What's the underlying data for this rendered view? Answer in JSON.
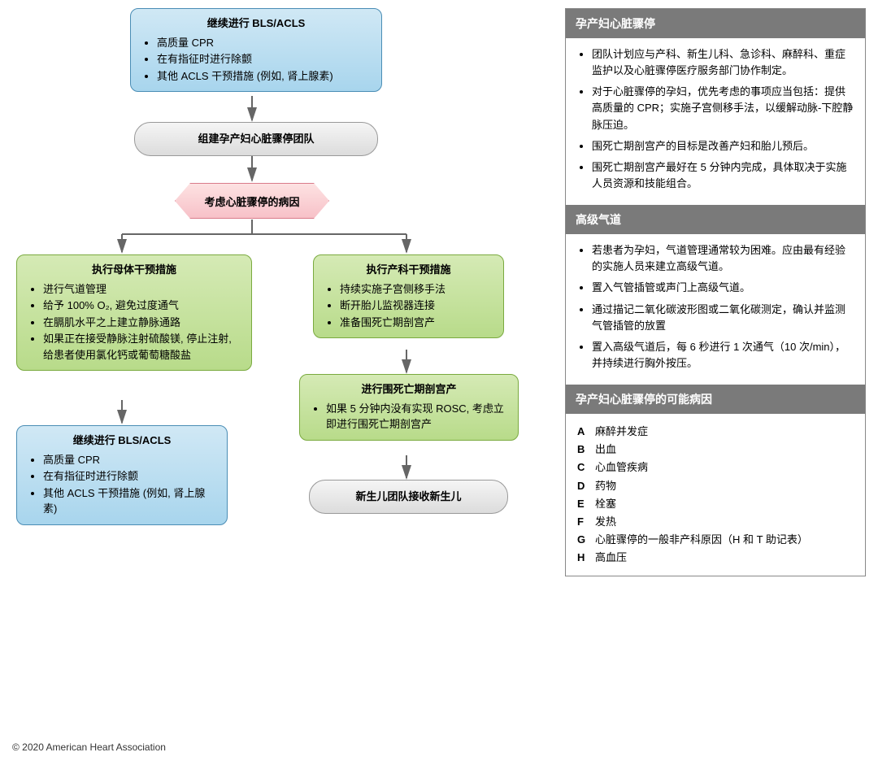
{
  "copyright": "© 2020 American Heart Association",
  "flowchart": {
    "box1": {
      "title": "继续进行 BLS/ACLS",
      "items": [
        "高质量 CPR",
        "在有指征时进行除颤",
        "其他 ACLS 干预措施 (例如, 肾上腺素)"
      ],
      "bg1": "#d0e8f5",
      "bg2": "#a8d5ed",
      "border": "#4a8db5"
    },
    "box2": {
      "text": "组建孕产妇心脏骤停团队",
      "bg1": "#f5f5f5",
      "bg2": "#dcdcdc",
      "border": "#999999"
    },
    "box3": {
      "text": "考虑心脏骤停的病因",
      "bg1": "#fde2e2",
      "bg2": "#f7c1c8",
      "border": "#d97b8a"
    },
    "box4": {
      "title": "执行母体干预措施",
      "items": [
        "进行气道管理",
        "给予 100% O₂, 避免过度通气",
        "在膈肌水平之上建立静脉通路",
        "如果正在接受静脉注射硫酸镁, 停止注射, 给患者使用氯化钙或葡萄糖酸盐"
      ],
      "bg1": "#d5eab5",
      "bg2": "#b8db8a",
      "border": "#7aaa3f"
    },
    "box5": {
      "title": "执行产科干预措施",
      "items": [
        "持续实施子宫侧移手法",
        "断开胎儿监视器连接",
        "准备围死亡期剖宫产"
      ],
      "bg1": "#d5eab5",
      "bg2": "#b8db8a",
      "border": "#7aaa3f"
    },
    "box6": {
      "title": "进行围死亡期剖宫产",
      "items": [
        "如果 5 分钟内没有实现 ROSC, 考虑立即进行围死亡期剖宫产"
      ],
      "bg1": "#d5eab5",
      "bg2": "#b8db8a",
      "border": "#7aaa3f"
    },
    "box7": {
      "title": "继续进行 BLS/ACLS",
      "items": [
        "高质量 CPR",
        "在有指征时进行除颤",
        "其他 ACLS 干预措施 (例如, 肾上腺素)"
      ],
      "bg1": "#d0e8f5",
      "bg2": "#a8d5ed",
      "border": "#4a8db5"
    },
    "box8": {
      "text": "新生儿团队接收新生儿",
      "bg1": "#f5f5f5",
      "bg2": "#dcdcdc",
      "border": "#999999"
    }
  },
  "sidebar": {
    "section1": {
      "header": "孕产妇心脏骤停",
      "items": [
        "团队计划应与产科、新生儿科、急诊科、麻醉科、重症监护以及心脏骤停医疗服务部门协作制定。",
        "对于心脏骤停的孕妇，优先考虑的事项应当包括：提供高质量的 CPR；实施子宫侧移手法，以缓解动脉-下腔静脉压迫。",
        "围死亡期剖宫产的目标是改善产妇和胎儿预后。",
        "围死亡期剖宫产最好在 5 分钟内完成，具体取决于实施人员资源和技能组合。"
      ]
    },
    "section2": {
      "header": "高级气道",
      "items": [
        "若患者为孕妇，气道管理通常较为困难。应由最有经验的实施人员来建立高级气道。",
        "置入气管插管或声门上高级气道。",
        "通过描记二氧化碳波形图或二氧化碳测定，确认并监测气管插管的放置",
        "置入高级气道后，每 6 秒进行 1 次通气（10 次/min），并持续进行胸外按压。"
      ]
    },
    "section3": {
      "header": "孕产妇心脏骤停的可能病因",
      "etiologies": [
        {
          "letter": "A",
          "text": "麻醉并发症"
        },
        {
          "letter": "B",
          "text": "出血"
        },
        {
          "letter": "C",
          "text": "心血管疾病"
        },
        {
          "letter": "D",
          "text": "药物"
        },
        {
          "letter": "E",
          "text": "栓塞"
        },
        {
          "letter": "F",
          "text": "发热"
        },
        {
          "letter": "G",
          "text": "心脏骤停的一般非产科原因（H 和 T 助记表）"
        },
        {
          "letter": "H",
          "text": "高血压"
        }
      ]
    }
  },
  "arrow_color": "#666666"
}
